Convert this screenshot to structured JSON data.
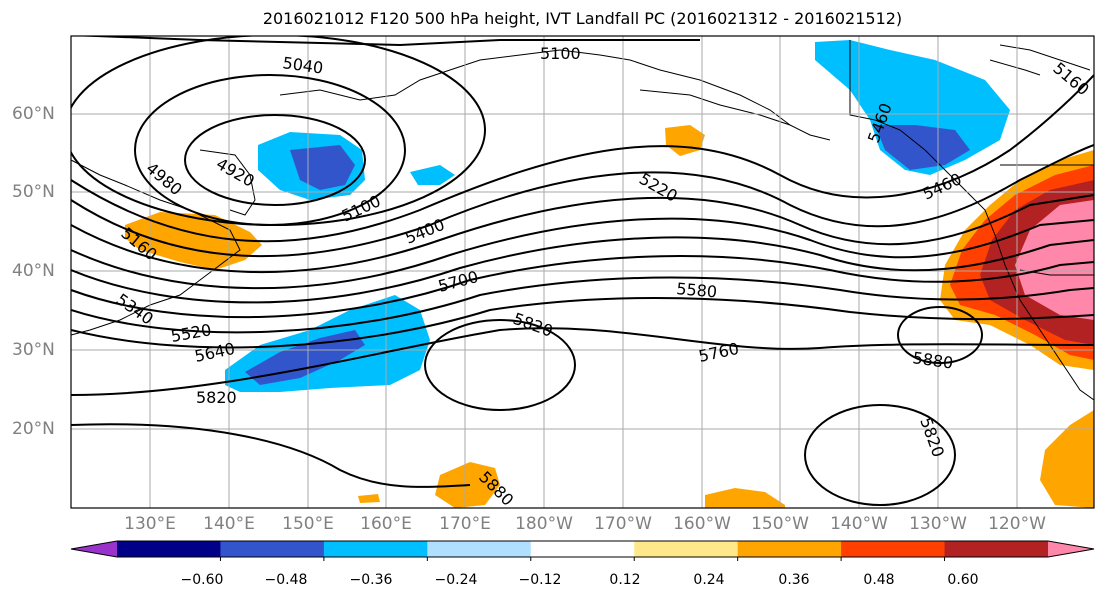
{
  "title": "2016021012 F120 500 hPa height, IVT Landfall PC (2016021312 - 2016021512)",
  "lat_labels": [
    "60°N",
    "50°N",
    "40°N",
    "30°N",
    "20°N"
  ],
  "lon_labels": [
    "130°E",
    "140°E",
    "150°E",
    "160°E",
    "170°E",
    "180°W",
    "170°W",
    "160°W",
    "150°W",
    "140°W",
    "130°W",
    "120°W"
  ],
  "contour_labels": [
    "5040",
    "5100",
    "4980",
    "4920",
    "5160",
    "5100",
    "5400",
    "5220",
    "5460",
    "5460",
    "5160",
    "5340",
    "5520",
    "5640",
    "5700",
    "5580",
    "5820",
    "5760",
    "5880",
    "5820",
    "5820",
    "5880"
  ],
  "colorbar": {
    "colors": [
      "#9933cc",
      "#000088",
      "#3355cc",
      "#00bfff",
      "#b0e0ff",
      "#ffffff",
      "#ffe88a",
      "#ffa500",
      "#ff4000",
      "#b22222",
      "#ff88aa"
    ],
    "tick_labels": [
      "−0.60",
      "−0.48",
      "−0.36",
      "−0.24",
      "−0.12",
      "0.12",
      "0.24",
      "0.36",
      "0.48",
      "0.60"
    ]
  }
}
